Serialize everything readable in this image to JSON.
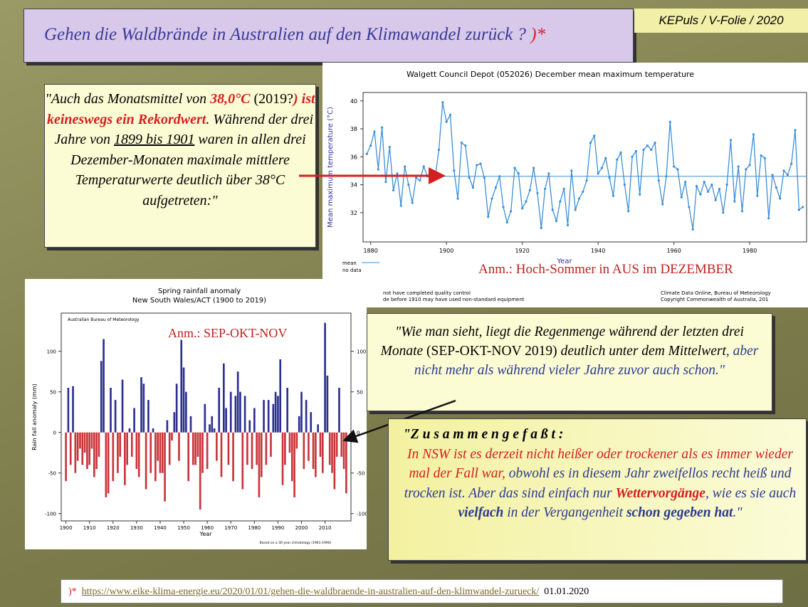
{
  "slide": {
    "title": "Gehen die Waldbrände in Australien auf den Klimawandel zurück ?",
    "title_mark": ")*",
    "header": "KEPuls / V-Folie / 2020",
    "callout1": [
      "\"Auch das Monatsmittel von ",
      "38,0°C",
      " (2019?",
      ") ist keineswegs ein Rekordwert",
      ". Während der drei Jahre von ",
      "1899 bis 1901",
      " waren in allen drei Dezember-Monaten maximale mittlere Temperaturwerte deutlich über 38°C aufgetreten:\""
    ],
    "annotation1": "Anm.: Hoch-Sommer in AUS im DEZEMBER",
    "annotation2": "Anm.: SEP-OKT-NOV",
    "callout2": [
      "\"Wie man sieht, liegt die Regenmenge während der letzten drei Monate ",
      "(SEP-OKT-NOV 2019)",
      " deutlich unter dem Mittelwert",
      ", aber nicht mehr als während vieler Jahre zuvor auch schon.\""
    ],
    "callout3": [
      "\"Z u s a m m e n g e f a ß t :",
      "In NSW ist es derzeit nicht heißer oder trockener als es immer wieder mal der Fall war,",
      " obwohl es in diesem Jahr zweifellos recht heiß und trocken ist. Aber das sind einfach nur ",
      "Wettervorgänge",
      ", wie es sie auch ",
      "vielfach",
      " in der Vergangenheit ",
      "schon gegeben hat",
      ".\""
    ],
    "footer": {
      "mark": ")*",
      "url": "https://www.eike-klima-energie.eu/2020/01/01/gehen-die-waldbraende-in-australien-auf-den-klimwandel-zurueck/",
      "date": "01.01.2020"
    }
  },
  "chart_data": [
    {
      "type": "line",
      "title": "Walgett Council Depot (052026) December mean maximum temperature",
      "ylabel": "Mean maximum temperature (°C)",
      "xlabel": "Year",
      "color": "#3d8fd6",
      "legend": [
        "mean",
        "no data"
      ],
      "mean": 34.6,
      "notes": [
        "not have completed quality control",
        "de before 1910 may have used non-standard equipment",
        "Climate Data Online, Bureau of Meteorology",
        "Copyright Commonwealth of Australia, 201"
      ],
      "xlim": [
        1878,
        1995
      ],
      "xticks": [
        1880,
        1900,
        1920,
        1940,
        1960,
        1980
      ],
      "ylim": [
        29.9,
        40.6
      ],
      "yticks": [
        32,
        34,
        36,
        38,
        40
      ],
      "x": [
        1879,
        1880,
        1881,
        1882,
        1883,
        1884,
        1885,
        1886,
        1887,
        1888,
        1889,
        1890,
        1891,
        1892,
        1893,
        1894,
        1895,
        1896,
        1897,
        1898,
        1899,
        1900,
        1901,
        1902,
        1903,
        1904,
        1905,
        1906,
        1907,
        1908,
        1909,
        1910,
        1911,
        1912,
        1913,
        1914,
        1915,
        1916,
        1917,
        1918,
        1919,
        1920,
        1921,
        1922,
        1923,
        1924,
        1925,
        1926,
        1927,
        1928,
        1929,
        1930,
        1931,
        1932,
        1933,
        1934,
        1935,
        1936,
        1937,
        1938,
        1939,
        1940,
        1941,
        1942,
        1943,
        1944,
        1945,
        1946,
        1947,
        1948,
        1949,
        1950,
        1951,
        1952,
        1953,
        1954,
        1955,
        1956,
        1957,
        1958,
        1959,
        1960,
        1961,
        1962,
        1963,
        1964,
        1965,
        1966,
        1967,
        1968,
        1969,
        1970,
        1971,
        1972,
        1973,
        1974,
        1975,
        1976,
        1977,
        1978,
        1979,
        1980,
        1981,
        1982,
        1983,
        1984,
        1985,
        1986,
        1987,
        1988,
        1989,
        1990,
        1991,
        1992,
        1993,
        1994
      ],
      "values": [
        36.2,
        36.8,
        37.8,
        35.1,
        38.1,
        34.2,
        36.7,
        33.6,
        34.8,
        32.5,
        35.3,
        34.0,
        32.7,
        34.5,
        34.3,
        35.3,
        34.6,
        35.0,
        34.5,
        36.5,
        39.9,
        38.5,
        39.0,
        35.0,
        33.0,
        37.0,
        36.8,
        34.5,
        33.8,
        35.4,
        35.5,
        34.5,
        31.7,
        33.0,
        33.8,
        34.6,
        32.4,
        31.3,
        32.1,
        35.2,
        34.8,
        32.3,
        32.8,
        33.6,
        35.2,
        33.4,
        30.9,
        33.7,
        34.8,
        32.2,
        31.4,
        32.8,
        33.7,
        31.1,
        35.0,
        32.2,
        33.0,
        33.5,
        34.3,
        37.0,
        37.5,
        34.8,
        35.2,
        35.9,
        34.5,
        33.2,
        35.8,
        36.3,
        34.0,
        32.1,
        36.0,
        36.4,
        33.3,
        36.5,
        36.8,
        36.5,
        37.0,
        34.3,
        32.6,
        34.6,
        38.5,
        35.3,
        35.1,
        33.1,
        34.2,
        32.4,
        30.8,
        33.9,
        33.3,
        34.2,
        33.5,
        34.0,
        32.9,
        33.7,
        32.0,
        34.0,
        37.2,
        32.8,
        35.3,
        32.1,
        35.1,
        35.4,
        37.6,
        33.2,
        36.1,
        35.9,
        31.6,
        34.7,
        33.8,
        33.0,
        35.0,
        34.7,
        35.5,
        37.9,
        32.2,
        32.4
      ]
    },
    {
      "type": "bar",
      "title": "Spring rainfall anomaly",
      "subtitle": "New South Wales/ACT (1900 to 2019)",
      "source": "Australian Bureau of Meteorology",
      "note": "Based on a 30 year climatology (1961-1990)",
      "ylabel": "Rain fall anomaly (mm)",
      "xlabel": "Year",
      "pos_color": "#2b2f8f",
      "neg_color": "#c8343a",
      "xlim": [
        1898,
        2021
      ],
      "xticks": [
        1900,
        1910,
        1920,
        1930,
        1940,
        1950,
        1960,
        1970,
        1980,
        1990,
        2000,
        2010
      ],
      "ylim": [
        -109,
        147
      ],
      "yticks": [
        -100,
        -50,
        0,
        50,
        100
      ],
      "x": [
        1900,
        1901,
        1902,
        1903,
        1904,
        1905,
        1906,
        1907,
        1908,
        1909,
        1910,
        1911,
        1912,
        1913,
        1914,
        1915,
        1916,
        1917,
        1918,
        1919,
        1920,
        1921,
        1922,
        1923,
        1924,
        1925,
        1926,
        1927,
        1928,
        1929,
        1930,
        1931,
        1932,
        1933,
        1934,
        1935,
        1936,
        1937,
        1938,
        1939,
        1940,
        1941,
        1942,
        1943,
        1944,
        1945,
        1946,
        1947,
        1948,
        1949,
        1950,
        1951,
        1952,
        1953,
        1954,
        1955,
        1956,
        1957,
        1958,
        1959,
        1960,
        1961,
        1962,
        1963,
        1964,
        1965,
        1966,
        1967,
        1968,
        1969,
        1970,
        1971,
        1972,
        1973,
        1974,
        1975,
        1976,
        1977,
        1978,
        1979,
        1980,
        1981,
        1982,
        1983,
        1984,
        1985,
        1986,
        1987,
        1988,
        1989,
        1990,
        1991,
        1992,
        1993,
        1994,
        1995,
        1996,
        1997,
        1998,
        1999,
        2000,
        2001,
        2002,
        2003,
        2004,
        2005,
        2006,
        2007,
        2008,
        2009,
        2010,
        2011,
        2012,
        2013,
        2014,
        2015,
        2016,
        2017,
        2018,
        2019
      ],
      "values": [
        -60,
        55,
        -40,
        57,
        -50,
        -35,
        -20,
        -40,
        -25,
        -45,
        -40,
        -20,
        -55,
        -45,
        -30,
        88,
        115,
        -80,
        -75,
        55,
        -60,
        40,
        -50,
        -30,
        65,
        -65,
        -40,
        5,
        -30,
        30,
        -45,
        -55,
        68,
        60,
        -70,
        40,
        -50,
        5,
        -60,
        -35,
        -50,
        -50,
        -85,
        15,
        -40,
        -10,
        25,
        60,
        -35,
        114,
        80,
        50,
        -60,
        20,
        -40,
        -40,
        -30,
        -95,
        -50,
        35,
        -45,
        10,
        20,
        5,
        -35,
        55,
        -55,
        85,
        30,
        -40,
        50,
        -60,
        45,
        75,
        50,
        -70,
        45,
        -40,
        15,
        -45,
        30,
        -40,
        -80,
        -55,
        40,
        -40,
        40,
        -30,
        35,
        50,
        45,
        90,
        -65,
        -40,
        55,
        -25,
        -60,
        -80,
        -20,
        20,
        50,
        -45,
        40,
        -35,
        25,
        -45,
        -55,
        10,
        -30,
        -50,
        135,
        70,
        -40,
        -50,
        -70,
        -30,
        55,
        -30,
        -45,
        -75
      ]
    }
  ]
}
